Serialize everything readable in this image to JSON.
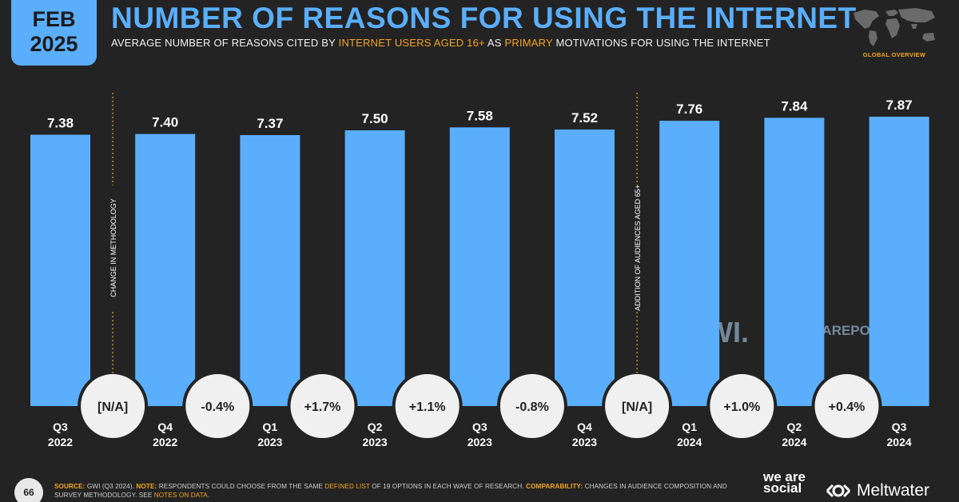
{
  "badge": {
    "month": "FEB",
    "year": "2025"
  },
  "header": {
    "title": "NUMBER OF REASONS FOR USING THE INTERNET",
    "subtitle_part1": "AVERAGE NUMBER OF REASONS CITED BY ",
    "subtitle_highlight1": "INTERNET USERS AGED 16+",
    "subtitle_part2": " AS ",
    "subtitle_highlight2": "PRIMARY",
    "subtitle_part3": " MOTIVATIONS FOR USING THE INTERNET",
    "overview_label": "GLOBAL OVERVIEW"
  },
  "chart_data": {
    "type": "bar",
    "categories": [
      [
        "Q3",
        "2022"
      ],
      [
        "Q4",
        "2022"
      ],
      [
        "Q1",
        "2023"
      ],
      [
        "Q2",
        "2023"
      ],
      [
        "Q3",
        "2023"
      ],
      [
        "Q4",
        "2023"
      ],
      [
        "Q1",
        "2024"
      ],
      [
        "Q2",
        "2024"
      ],
      [
        "Q3",
        "2024"
      ]
    ],
    "values": [
      7.38,
      7.4,
      7.37,
      7.5,
      7.58,
      7.52,
      7.76,
      7.84,
      7.87
    ],
    "value_labels": [
      "7.38",
      "7.40",
      "7.37",
      "7.50",
      "7.58",
      "7.52",
      "7.76",
      "7.84",
      "7.87"
    ],
    "changes": [
      "[N/A]",
      "-0.4%",
      "+1.7%",
      "+1.1%",
      "-0.8%",
      "[N/A]",
      "+1.0%",
      "+0.4%"
    ],
    "annotations": [
      {
        "after_index": 0,
        "text": "CHANGE IN METHODOLOGY"
      },
      {
        "after_index": 5,
        "text": "ADDITION OF AUDIENCES AGED 65+"
      }
    ],
    "bar_color": "#5aaefc",
    "ylim": [
      0,
      7.87
    ],
    "grid": false,
    "watermarks": [
      "GWI.",
      "DATAREPORTAL"
    ]
  },
  "footer": {
    "page_number": "66",
    "source_label": "SOURCE:",
    "source_text": " GWI (Q3 2024). ",
    "note_label": "NOTE:",
    "note_text_1": " RESPONDENTS COULD CHOOSE FROM THE SAME ",
    "note_link": "DEFINED LIST",
    "note_text_2": " OF 19 OPTIONS IN EACH WAVE OF RESEARCH. ",
    "comparability_label": "COMPARABILITY:",
    "comparability_text": " CHANGES IN AUDIENCE COMPOSITION AND SURVEY METHODOLOGY. SEE ",
    "notes_link": "NOTES ON DATA",
    "end": ".",
    "brand_1": "we are social",
    "brand_2": "Meltwater"
  },
  "colors": {
    "background": "#232323",
    "accent": "#5aaefc",
    "highlight": "#f5a623",
    "bubble": "#f0f0f0"
  }
}
